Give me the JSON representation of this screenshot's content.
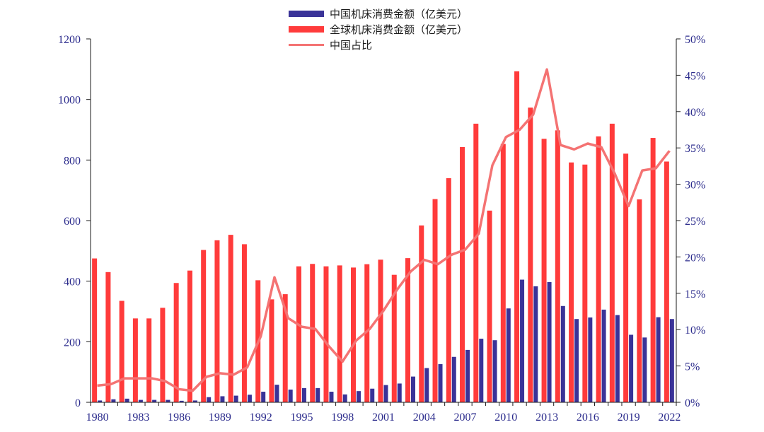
{
  "chart_data": {
    "type": "bar+line",
    "title": "",
    "x": [
      1980,
      1981,
      1982,
      1983,
      1984,
      1985,
      1986,
      1987,
      1988,
      1989,
      1990,
      1991,
      1992,
      1993,
      1994,
      1995,
      1996,
      1997,
      1998,
      1999,
      2000,
      2001,
      2002,
      2003,
      2004,
      2005,
      2006,
      2007,
      2008,
      2009,
      2010,
      2011,
      2012,
      2013,
      2014,
      2015,
      2016,
      2017,
      2018,
      2019,
      2020,
      2021,
      2022
    ],
    "x_tick_labels": [
      "1980",
      "1983",
      "1986",
      "1989",
      "1992",
      "1995",
      "1998",
      "2001",
      "2004",
      "2007",
      "2010",
      "2013",
      "2016",
      "2019",
      "2022"
    ],
    "series": [
      {
        "name": "中国机床消费金额（亿美元）",
        "type": "bar",
        "axis": "left",
        "color": "#3a3398",
        "values": [
          6,
          10,
          12,
          8,
          8,
          8,
          5,
          6,
          17,
          20,
          22,
          25,
          35,
          58,
          42,
          47,
          47,
          35,
          26,
          37,
          45,
          57,
          62,
          85,
          113,
          126,
          150,
          173,
          210,
          205,
          310,
          405,
          383,
          397,
          318,
          275,
          280,
          306,
          288,
          223,
          214,
          281,
          275
        ]
      },
      {
        "name": "全球机床消费金额（亿美元）",
        "type": "bar",
        "axis": "left",
        "color": "#ff3b3b",
        "values": [
          475,
          430,
          335,
          277,
          277,
          312,
          394,
          435,
          503,
          535,
          553,
          522,
          403,
          340,
          357,
          449,
          457,
          449,
          452,
          445,
          456,
          471,
          421,
          476,
          584,
          671,
          740,
          843,
          920,
          633,
          853,
          1093,
          973,
          870,
          898,
          792,
          785,
          878,
          920,
          821,
          670,
          873,
          795
        ]
      },
      {
        "name": "中国占比",
        "type": "line",
        "axis": "right",
        "color": "#f47373",
        "values": [
          2.3,
          2.5,
          3.3,
          3.3,
          3.3,
          2.9,
          1.8,
          1.6,
          3.5,
          4.0,
          3.8,
          4.8,
          9.1,
          17.2,
          11.6,
          10.4,
          10.1,
          7.7,
          5.6,
          8.5,
          10.1,
          12.6,
          15.5,
          18.0,
          19.6,
          19.0,
          20.3,
          21.0,
          23.2,
          32.6,
          36.5,
          37.5,
          39.6,
          45.8,
          35.4,
          34.8,
          35.6,
          35.1,
          31.4,
          27.0,
          31.9,
          32.2,
          34.6
        ]
      }
    ],
    "y_left": {
      "min": 0,
      "max": 1200,
      "ticks": [
        "0",
        "200",
        "400",
        "600",
        "800",
        "1000",
        "1200"
      ]
    },
    "y_right": {
      "min": 0,
      "max": 50,
      "ticks": [
        "0%",
        "5%",
        "10%",
        "15%",
        "20%",
        "25%",
        "30%",
        "35%",
        "40%",
        "45%",
        "50%"
      ]
    },
    "grid": false,
    "legend_position": "top-center"
  },
  "legend": {
    "items": [
      {
        "label": "中国机床消费金额（亿美元）",
        "color": "#3a3398",
        "kind": "bar"
      },
      {
        "label": "全球机床消费金额（亿美元）",
        "color": "#ff3b3b",
        "kind": "bar"
      },
      {
        "label": "中国占比",
        "color": "#f47373",
        "kind": "line"
      }
    ]
  },
  "colors": {
    "axis": "#1a1a1a",
    "tick_text": "#2b2b8c"
  }
}
